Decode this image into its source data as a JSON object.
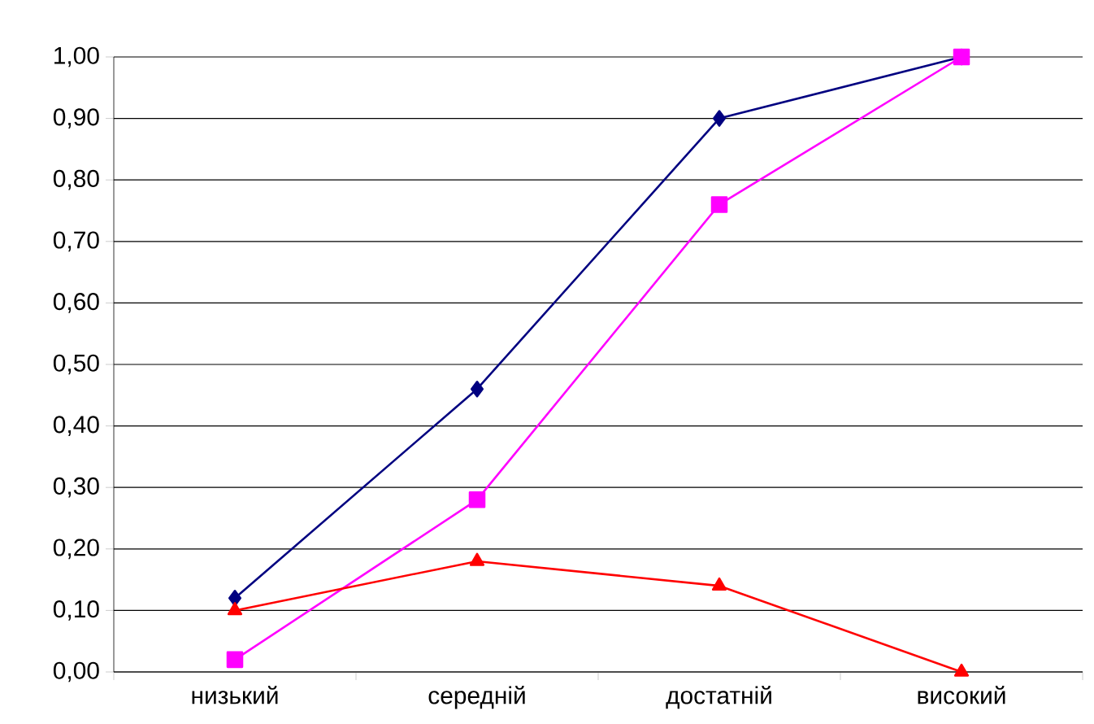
{
  "chart_data": {
    "type": "line",
    "categories": [
      "низький",
      "середній",
      "достатній",
      "високий"
    ],
    "series": [
      {
        "color": "#000080",
        "marker": "diamond",
        "values": [
          0.12,
          0.46,
          0.9,
          1.0
        ]
      },
      {
        "color": "#ff00ff",
        "marker": "square",
        "values": [
          0.02,
          0.28,
          0.76,
          1.0
        ]
      },
      {
        "color": "#ff0000",
        "marker": "triangle",
        "values": [
          0.1,
          0.18,
          0.14,
          0.0
        ]
      }
    ],
    "ylim": [
      0,
      1
    ],
    "yticks": [
      {
        "value": 0,
        "label": "0,00"
      },
      {
        "value": 0.1,
        "label": "0,10"
      },
      {
        "value": 0.2,
        "label": "0,20"
      },
      {
        "value": 0.3,
        "label": "0,30"
      },
      {
        "value": 0.4,
        "label": "0,40"
      },
      {
        "value": 0.5,
        "label": "0,50"
      },
      {
        "value": 0.6,
        "label": "0,60"
      },
      {
        "value": 0.7,
        "label": "0,70"
      },
      {
        "value": 0.8,
        "label": "0,80"
      },
      {
        "value": 0.9,
        "label": "0,90"
      },
      {
        "value": 1.0,
        "label": "1,00"
      }
    ],
    "grid": "y",
    "line_style": "solid"
  }
}
